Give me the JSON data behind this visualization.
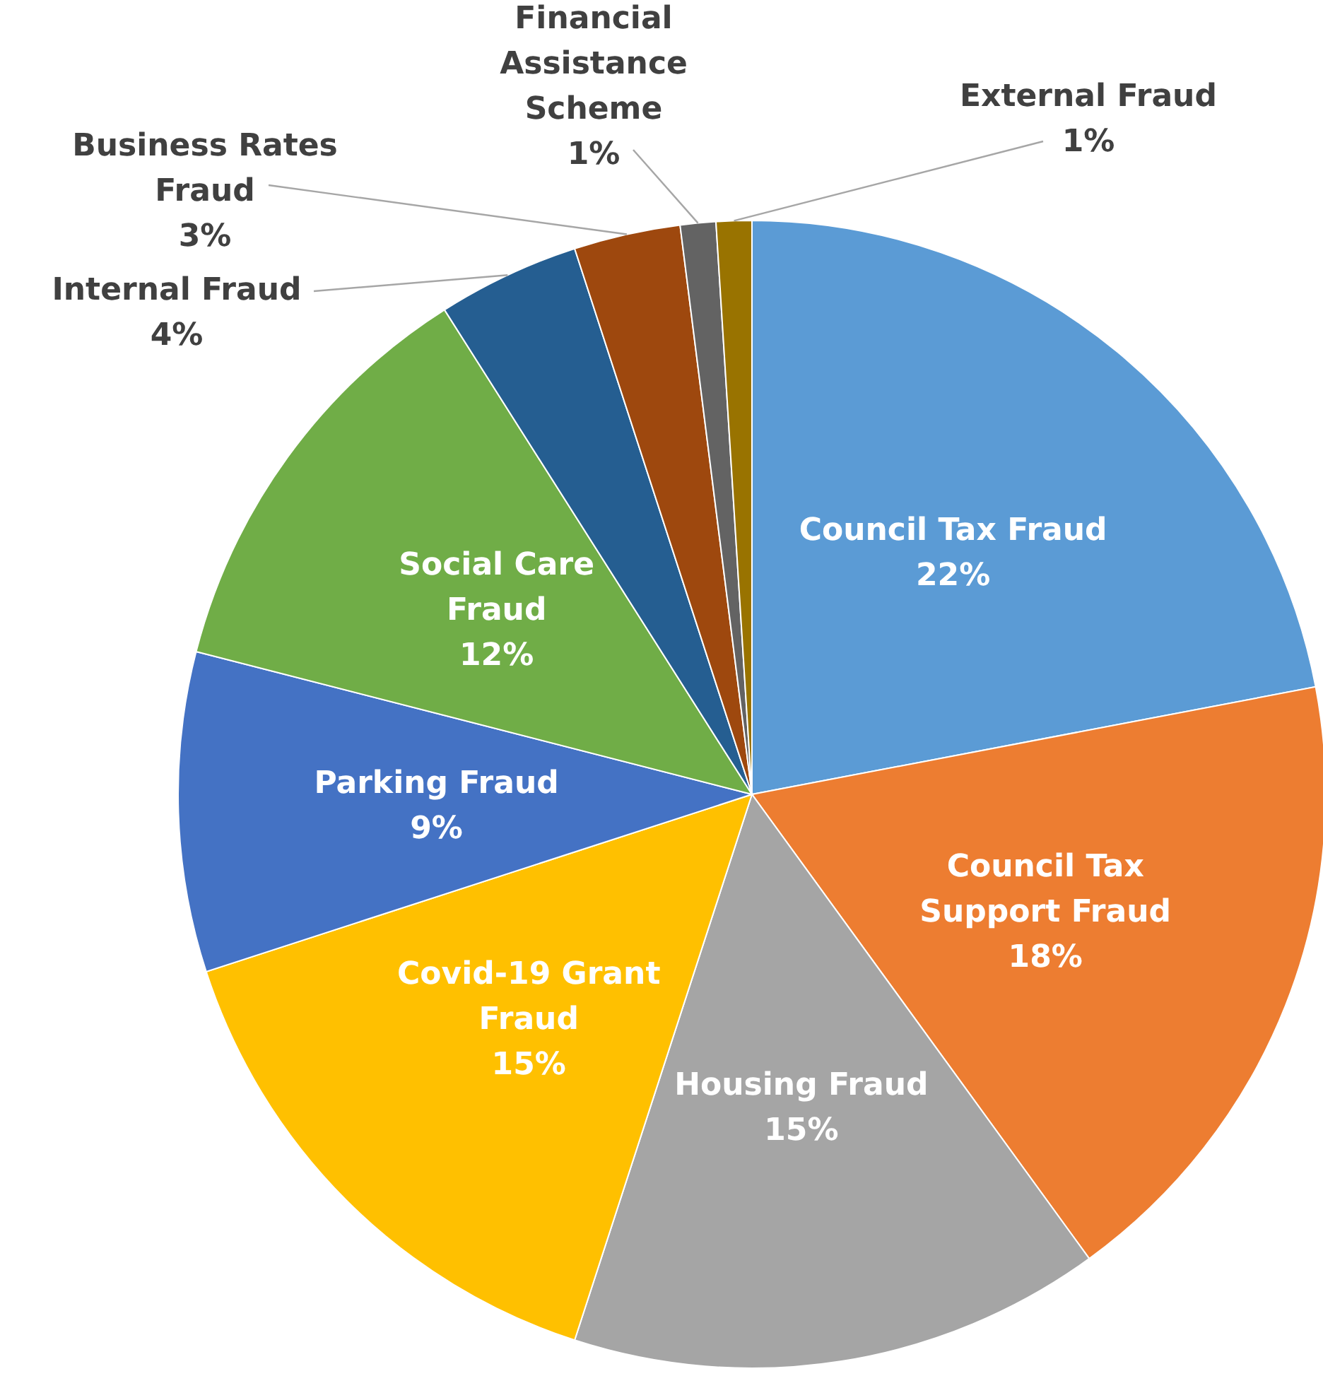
{
  "chart_data": {
    "type": "pie",
    "categories": [
      "Council Tax Fraud",
      "Council Tax Support Fraud",
      "Housing Fraud",
      "Covid-19 Grant Fraud",
      "Parking Fraud",
      "Social Care Fraud",
      "Internal Fraud",
      "Business Rates Fraud",
      "Financial Assistance Scheme",
      "External Fraud"
    ],
    "values": [
      22,
      18,
      15,
      15,
      9,
      12,
      4,
      3,
      1,
      1
    ],
    "value_labels": [
      "22%",
      "18%",
      "15%",
      "15%",
      "9%",
      "12%",
      "4%",
      "3%",
      "1%",
      "1%"
    ],
    "colors": [
      "#5b9bd5",
      "#ed7d31",
      "#a5a5a5",
      "#ffc000",
      "#4472c4",
      "#70ad47",
      "#255e91",
      "#9e480e",
      "#636363",
      "#997300"
    ],
    "data_labels": true
  }
}
